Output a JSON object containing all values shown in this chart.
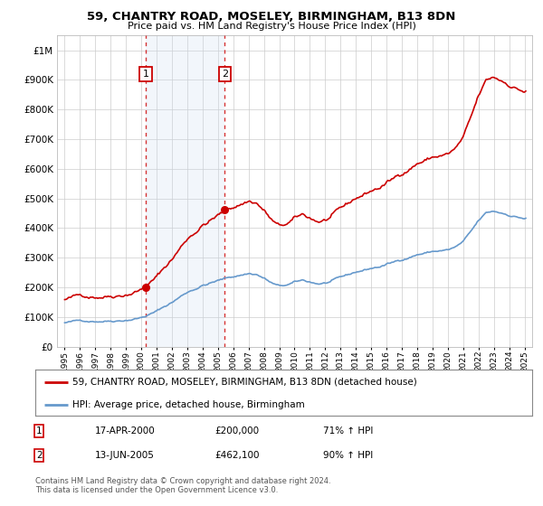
{
  "title": "59, CHANTRY ROAD, MOSELEY, BIRMINGHAM, B13 8DN",
  "subtitle": "Price paid vs. HM Land Registry's House Price Index (HPI)",
  "legend_line1": "59, CHANTRY ROAD, MOSELEY, BIRMINGHAM, B13 8DN (detached house)",
  "legend_line2": "HPI: Average price, detached house, Birmingham",
  "sale1_date_str": "17-APR-2000",
  "sale1_price": 200000,
  "sale1_pct": "71% ↑ HPI",
  "sale1_year": 2000.29,
  "sale2_date_str": "13-JUN-2005",
  "sale2_price": 462100,
  "sale2_pct": "90% ↑ HPI",
  "sale2_year": 2005.45,
  "ytick_values": [
    0,
    100000,
    200000,
    300000,
    400000,
    500000,
    600000,
    700000,
    800000,
    900000,
    1000000
  ],
  "xlim": [
    1994.5,
    2025.5
  ],
  "ylim": [
    0,
    1050000
  ],
  "red_color": "#cc0000",
  "blue_color": "#6699cc",
  "background_color": "#ffffff",
  "grid_color": "#cccccc",
  "shade_color": "#ccddf0",
  "footnote": "Contains HM Land Registry data © Crown copyright and database right 2024.\nThis data is licensed under the Open Government Licence v3.0."
}
